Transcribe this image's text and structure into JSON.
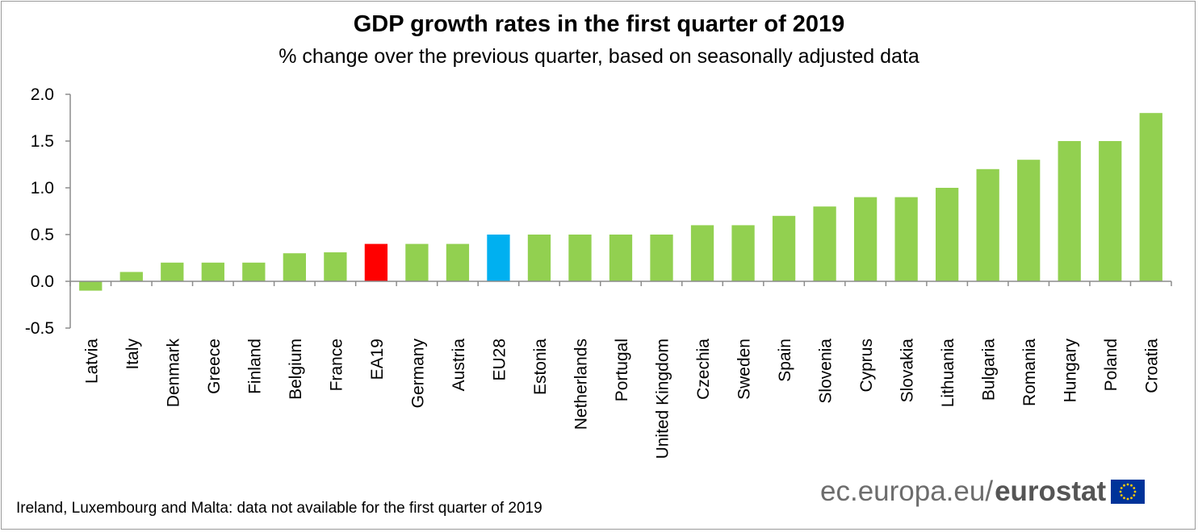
{
  "chart_data": {
    "type": "bar",
    "title": "GDP growth rates in the first quarter of 2019",
    "subtitle": "% change over the previous quarter, based on seasonally adjusted data",
    "categories": [
      "Latvia",
      "Italy",
      "Denmark",
      "Greece",
      "Finland",
      "Belgium",
      "France",
      "EA19",
      "Germany",
      "Austria",
      "EU28",
      "Estonia",
      "Netherlands",
      "Portugal",
      "United Kingdom",
      "Czechia",
      "Sweden",
      "Spain",
      "Slovenia",
      "Cyprus",
      "Slovakia",
      "Lithuania",
      "Bulgaria",
      "Romania",
      "Hungary",
      "Poland",
      "Croatia"
    ],
    "values": [
      -0.1,
      0.1,
      0.2,
      0.2,
      0.2,
      0.3,
      0.31,
      0.4,
      0.4,
      0.4,
      0.5,
      0.5,
      0.5,
      0.5,
      0.5,
      0.6,
      0.6,
      0.7,
      0.8,
      0.9,
      0.9,
      1.0,
      1.2,
      1.3,
      1.5,
      1.5,
      1.8
    ],
    "ylim": [
      -0.5,
      2.0
    ],
    "yticks": [
      "-0.5",
      "0.0",
      "0.5",
      "1.0",
      "1.5",
      "2.0"
    ],
    "grid": false,
    "colors": {
      "default": "#92d050",
      "EA19": "#ff0000",
      "EU28": "#00b0f0",
      "axis": "#8c8c8c"
    },
    "footnote": "Ireland, Luxembourg and Malta: data not available for the first quarter of 2019"
  },
  "source": {
    "domain_text": "ec.europa.eu/",
    "brand_text": "eurostat",
    "flag_icon": "eu-flag-icon"
  }
}
